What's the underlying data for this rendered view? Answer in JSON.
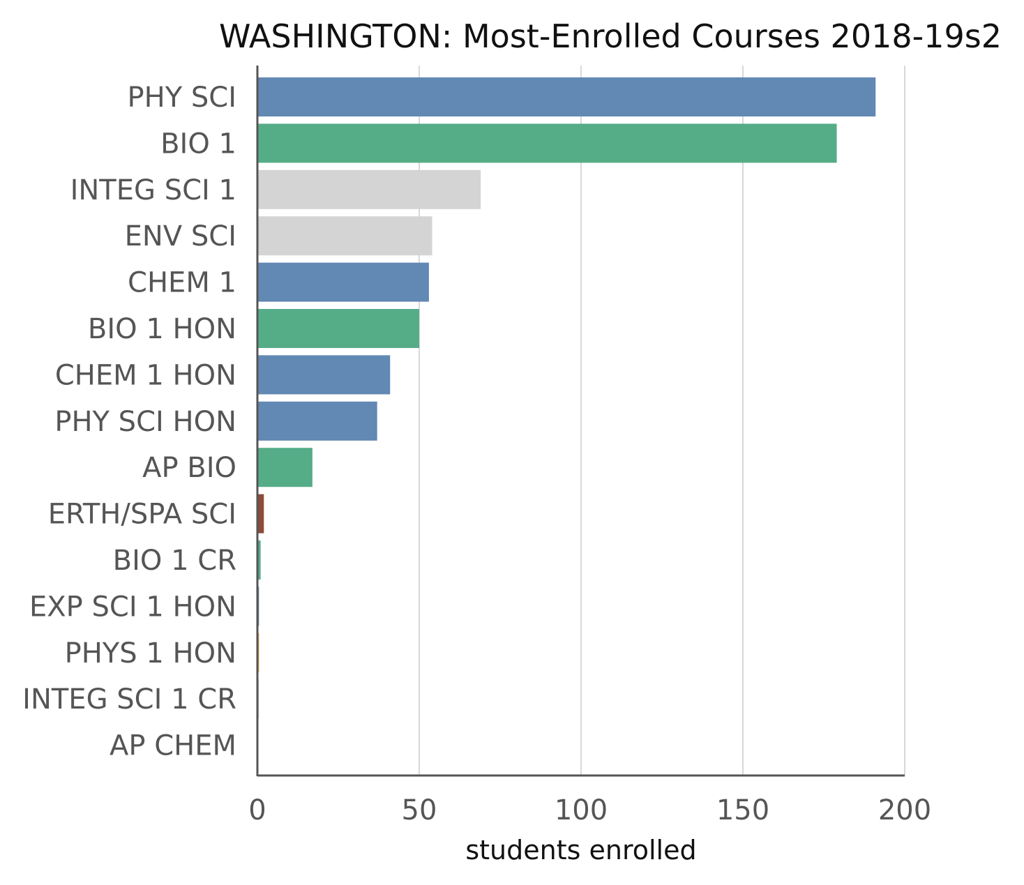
{
  "chart_data": {
    "type": "bar",
    "orientation": "horizontal",
    "title": "WASHINGTON: Most-Enrolled Courses 2018-19s2",
    "xlabel": "students enrolled",
    "ylabel": "",
    "xlim": [
      0,
      200
    ],
    "xticks": [
      0,
      50,
      100,
      150,
      200
    ],
    "xtick_labels": [
      "0",
      "50",
      "100",
      "150",
      "200"
    ],
    "grid": "vertical",
    "legend": "none",
    "categories": [
      "PHY SCI",
      "BIO 1",
      "INTEG SCI 1",
      "ENV SCI",
      "CHEM 1",
      "BIO 1 HON",
      "CHEM 1 HON",
      "PHY SCI HON",
      "AP BIO",
      "ERTH/SPA SCI",
      "BIO 1 CR",
      "EXP SCI 1 HON",
      "PHYS 1 HON",
      "INTEG SCI 1 CR",
      "AP CHEM"
    ],
    "values": [
      191,
      179,
      69,
      54,
      53,
      50,
      41,
      37,
      17,
      2,
      1,
      0.5,
      0.5,
      0.5,
      0
    ],
    "colors": [
      "#6288b4",
      "#55ad88",
      "#d4d4d4",
      "#d4d4d4",
      "#6288b4",
      "#55ad88",
      "#6288b4",
      "#6288b4",
      "#55ad88",
      "#8d4b3a",
      "#55ad88",
      "#6288b4",
      "#e3a23b",
      "#d4d4d4",
      "#8d4b3a"
    ]
  }
}
